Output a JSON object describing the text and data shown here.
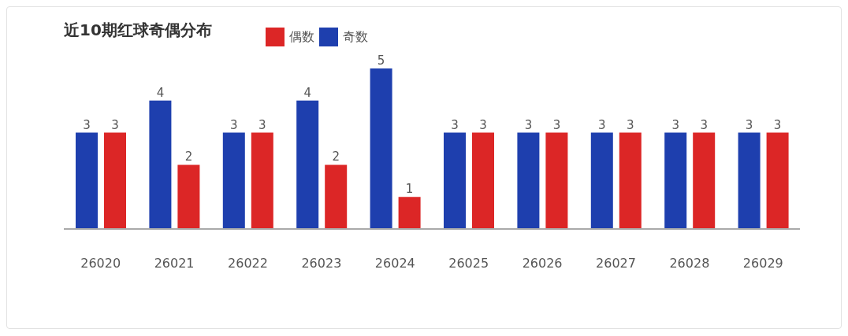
{
  "chart_data": {
    "type": "bar",
    "title": "近10期红球奇偶分布",
    "categories": [
      "26020",
      "26021",
      "26022",
      "26023",
      "26024",
      "26025",
      "26026",
      "26027",
      "26028",
      "26029"
    ],
    "series": [
      {
        "name": "奇数",
        "color": "#1e3fae",
        "values": [
          3,
          4,
          3,
          4,
          5,
          3,
          3,
          3,
          3,
          3
        ]
      },
      {
        "name": "偶数",
        "color": "#dc2626",
        "values": [
          3,
          2,
          3,
          2,
          1,
          3,
          3,
          3,
          3,
          3
        ]
      }
    ],
    "data_labels": true,
    "legend": "top",
    "grid": false
  }
}
